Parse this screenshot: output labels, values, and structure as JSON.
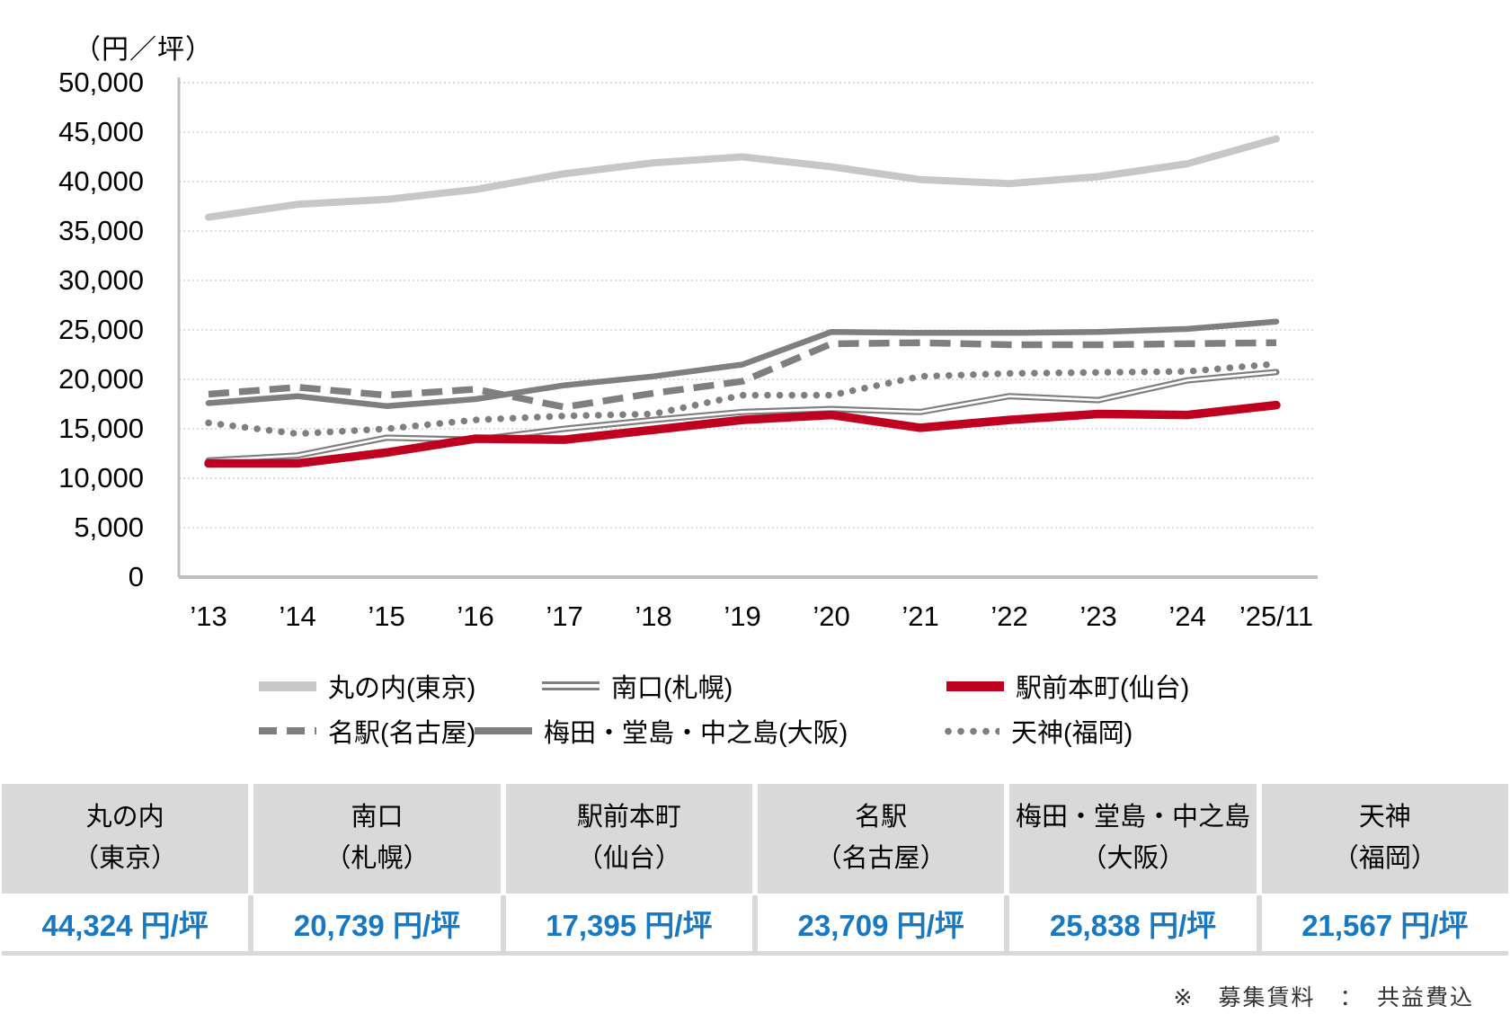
{
  "footnote": "※　募集賃料　：　共益費込",
  "chart_data": {
    "type": "line",
    "title": "",
    "y_axis_title": "（円／坪）",
    "ylabel": "円/坪",
    "xlabel": "",
    "ylim": [
      0,
      50000
    ],
    "ytick_step": 5000,
    "grid": "horizontal-dotted",
    "legend_position": "bottom",
    "categories": [
      "’13",
      "’14",
      "’15",
      "’16",
      "’17",
      "’18",
      "’19",
      "’20",
      "’21",
      "’22",
      "’23",
      "’24",
      "’25/11"
    ],
    "series": [
      {
        "name": "丸の内(東京)",
        "style": "solid-thick",
        "color": "#c7c7c7",
        "values": [
          36400,
          37700,
          38200,
          39200,
          40800,
          41900,
          42500,
          41500,
          40200,
          39800,
          40500,
          41800,
          44324
        ]
      },
      {
        "name": "南口(札幌)",
        "style": "double",
        "color": "#7f7f7f",
        "values": [
          11800,
          12300,
          14100,
          13900,
          15000,
          15900,
          16700,
          17000,
          16700,
          18300,
          17900,
          19900,
          20739
        ]
      },
      {
        "name": "駅前本町(仙台)",
        "style": "solid-red",
        "color": "#c00020",
        "values": [
          11500,
          11500,
          12600,
          14000,
          13900,
          14900,
          15900,
          16400,
          15100,
          15900,
          16500,
          16400,
          17395
        ]
      },
      {
        "name": "名駅(名古屋)",
        "style": "dashed",
        "color": "#7f7f7f",
        "values": [
          18500,
          19200,
          18400,
          19000,
          17200,
          18600,
          19800,
          23600,
          23700,
          23500,
          23500,
          23600,
          23709
        ]
      },
      {
        "name": "梅田・堂島・中之島(大阪)",
        "style": "solid",
        "color": "#7f7f7f",
        "values": [
          17600,
          18300,
          17300,
          18000,
          19400,
          20300,
          21500,
          24800,
          24700,
          24700,
          24800,
          25100,
          25838
        ]
      },
      {
        "name": "天神(福岡)",
        "style": "dotted",
        "color": "#7f7f7f",
        "values": [
          15600,
          14500,
          15000,
          15900,
          16300,
          16500,
          18400,
          18400,
          20300,
          20600,
          20700,
          20800,
          21567
        ]
      }
    ]
  },
  "legend": {
    "rows": [
      [
        {
          "series": 0
        },
        {
          "series": 1
        },
        {
          "series": 2
        }
      ],
      [
        {
          "series": 3
        },
        {
          "series": 4
        },
        {
          "series": 5
        }
      ]
    ]
  },
  "table": {
    "columns": [
      {
        "line1": "丸の内",
        "line2": "（東京）",
        "value": "44,324 円/坪"
      },
      {
        "line1": "南口",
        "line2": "（札幌）",
        "value": "20,739 円/坪"
      },
      {
        "line1": "駅前本町",
        "line2": "（仙台）",
        "value": "17,395 円/坪"
      },
      {
        "line1": "名駅",
        "line2": "（名古屋）",
        "value": "23,709 円/坪"
      },
      {
        "line1": "梅田・堂島・中之島",
        "line2": "（大阪）",
        "value": "25,838 円/坪"
      },
      {
        "line1": "天神",
        "line2": "（福岡）",
        "value": "21,567 円/坪"
      }
    ],
    "header_bg": "#d9d9d9",
    "value_color": "#1879c2"
  }
}
